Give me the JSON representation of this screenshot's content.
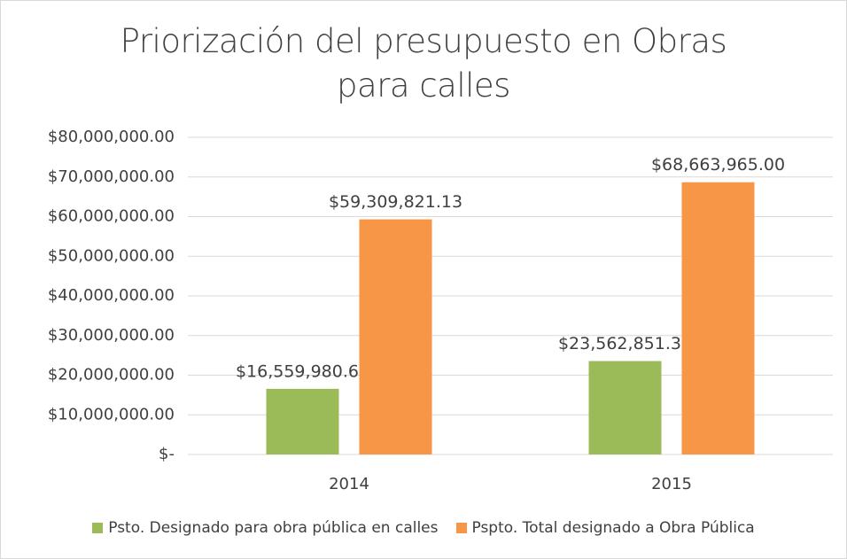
{
  "chart_data": {
    "type": "bar",
    "title": "Priorización del presupuesto en Obras para calles",
    "categories": [
      "2014",
      "2015"
    ],
    "series": [
      {
        "name": "Psto. Designado para obra pública en calles",
        "color": "#9bbb59",
        "values": [
          16559980.65,
          23562851.3
        ],
        "value_labels": [
          "$16,559,980.65",
          "$23,562,851.30"
        ]
      },
      {
        "name": "Pspto. Total designado a Obra Pública",
        "color": "#f79646",
        "values": [
          59309821.13,
          68663965.0
        ],
        "value_labels": [
          "$59,309,821.13",
          "$68,663,965.00"
        ]
      }
    ],
    "ylim": [
      0,
      80000000
    ],
    "yticks": [
      {
        "value": 0,
        "label": "$-"
      },
      {
        "value": 10000000,
        "label": "$10,000,000.00"
      },
      {
        "value": 20000000,
        "label": "$20,000,000.00"
      },
      {
        "value": 30000000,
        "label": "$30,000,000.00"
      },
      {
        "value": 40000000,
        "label": "$40,000,000.00"
      },
      {
        "value": 50000000,
        "label": "$50,000,000.00"
      },
      {
        "value": 60000000,
        "label": "$60,000,000.00"
      },
      {
        "value": 70000000,
        "label": "$70,000,000.00"
      },
      {
        "value": 80000000,
        "label": "$80,000,000.00"
      }
    ],
    "grid": true,
    "legend": "bottom"
  }
}
